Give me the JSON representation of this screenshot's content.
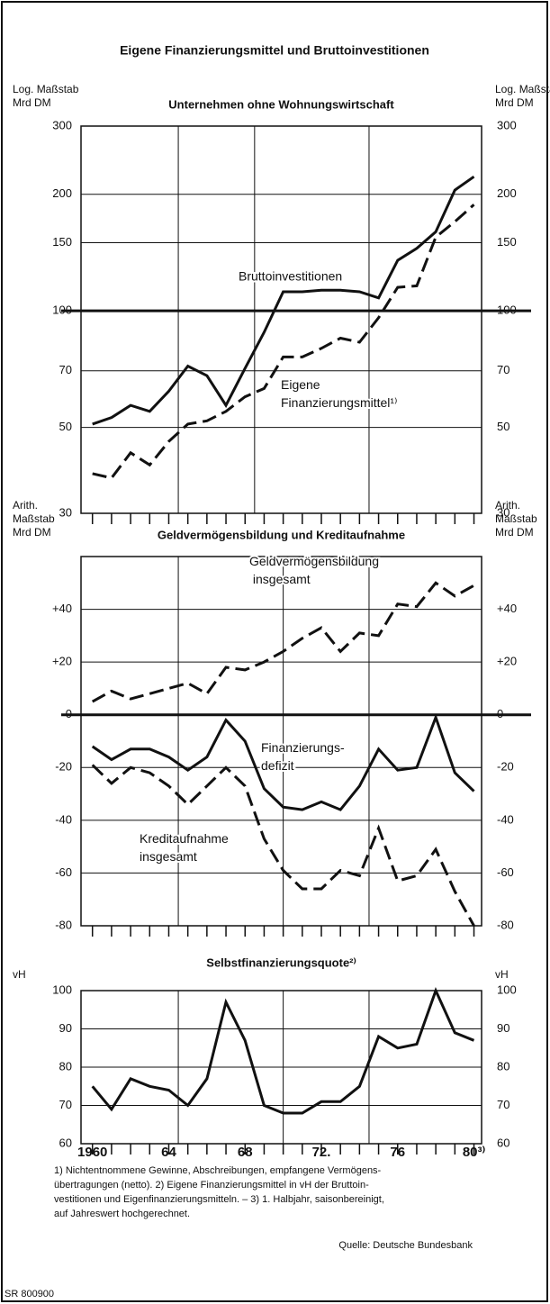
{
  "title": "Eigene Finanzierungsmittel und Bruttoinvestitionen",
  "notes": [
    "1) Nichtentnommene Gewinne, Abschreibungen, empfangene Vermögens-",
    "übertragungen (netto). 2) Eigene Finanzierungsmittel in vH der Bruttoin-",
    "vestitionen und Eigenfinanzierungsmitteln. – 3) 1. Halbjahr, saisonbereinigt,",
    "auf Jahreswert hochgerechnet."
  ],
  "source": "Quelle: Deutsche Bundesbank",
  "code": "SR 800900",
  "chart_data": [
    {
      "type": "line",
      "title": "Unternehmen ohne Wohnungswirtschaft",
      "ylabel": "Log. Maßstab\nMrd  DM",
      "log": true,
      "color": "#111",
      "x": [
        1960,
        1961,
        1962,
        1963,
        1964,
        1965,
        1966,
        1967,
        1968,
        1969,
        1970,
        1971,
        1972,
        1973,
        1974,
        1975,
        1976,
        1977,
        1978,
        1979,
        1980
      ],
      "xlim": [
        1959.4,
        1980.4
      ],
      "ylim": [
        30,
        300
      ],
      "yticks": [
        30,
        50,
        70,
        100,
        150,
        200,
        300
      ],
      "baseline": 100,
      "vgrid": [
        1964.5,
        1968.5,
        1974.5
      ],
      "series": [
        {
          "name": "Bruttoinvestitionen",
          "dash": false,
          "values": [
            51,
            53,
            57,
            55,
            62,
            72,
            68,
            57,
            71,
            88,
            112,
            112,
            113,
            113,
            112,
            108,
            135,
            145,
            160,
            205,
            222
          ]
        },
        {
          "name": "Eigene\nFinanzierungsmittel¹⁾",
          "dash": true,
          "values": [
            38,
            37,
            43,
            40,
            46,
            51,
            52,
            55,
            60,
            63,
            76,
            76,
            80,
            85,
            83,
            96,
            115,
            116,
            155,
            170,
            188
          ]
        }
      ]
    },
    {
      "type": "line",
      "title": "Geldvermögensbildung und Kreditaufnahme",
      "ylabel": "Arith.\nMaßstab\nMrd  DM",
      "log": false,
      "color": "#111",
      "x": [
        1960,
        1961,
        1962,
        1963,
        1964,
        1965,
        1966,
        1967,
        1968,
        1969,
        1970,
        1971,
        1972,
        1973,
        1974,
        1975,
        1976,
        1977,
        1978,
        1979,
        1980
      ],
      "xlim": [
        1959.4,
        1980.4
      ],
      "ylim": [
        -80,
        60
      ],
      "yticks": [
        -80,
        -60,
        -40,
        -20,
        0,
        {
          "value": 20,
          "label": "+20"
        },
        {
          "value": 40,
          "label": "+40"
        }
      ],
      "baseline": 0,
      "vgrid": [
        1964.5,
        1970,
        1974.5
      ],
      "series": [
        {
          "name": "Geldvermögensbildung\n  insgesamt",
          "dash": true,
          "values": [
            5,
            9,
            6,
            8,
            10,
            12,
            8,
            18,
            17,
            20,
            24,
            29,
            33,
            24,
            31,
            30,
            42,
            41,
            50,
            45,
            49
          ]
        },
        {
          "name": "Finanzierungs-\ndefizit",
          "dash": false,
          "values": [
            -12,
            -17,
            -13,
            -13,
            -16,
            -21,
            -16,
            -2,
            -10,
            -28,
            -35,
            -36,
            -33,
            -36,
            -27,
            -13,
            -21,
            -20,
            -1,
            -22,
            -29
          ]
        },
        {
          "name": "Kreditaufnahme\ninsgesamt",
          "dash": true,
          "values": [
            -19,
            -26,
            -20,
            -22,
            -27,
            -34,
            -27,
            -20,
            -27,
            -47,
            -59,
            -66,
            -66,
            -59,
            -61,
            -43,
            -63,
            -61,
            -51,
            -67,
            -80
          ]
        }
      ]
    },
    {
      "type": "line",
      "title": "Selbstfinanzierungsquote²⁾",
      "ylabel": "vH",
      "log": false,
      "color": "#111",
      "x": [
        1960,
        1961,
        1962,
        1963,
        1964,
        1965,
        1966,
        1967,
        1968,
        1969,
        1970,
        1971,
        1972,
        1973,
        1974,
        1975,
        1976,
        1977,
        1978,
        1979,
        1980
      ],
      "xlim": [
        1959.4,
        1980.4
      ],
      "ylim": [
        60,
        100
      ],
      "yticks": [
        60,
        70,
        80,
        90,
        100
      ],
      "vgrid": [
        1964.5,
        1970,
        1974.5
      ],
      "xticks": [
        {
          "value": 1960,
          "label": "1960"
        },
        {
          "value": 1964,
          "label": "64"
        },
        {
          "value": 1968,
          "label": "68"
        },
        {
          "value": 1972,
          "label": "72."
        },
        {
          "value": 1976,
          "label": "76"
        },
        {
          "value": 1980,
          "label": "80³⁾"
        }
      ],
      "series": [
        {
          "name": "Selbstfinanzierungsquote",
          "dash": false,
          "values": [
            75,
            69,
            77,
            75,
            74,
            70,
            77,
            97,
            87,
            70,
            68,
            68,
            71,
            71,
            75,
            88,
            85,
            86,
            100,
            89,
            87
          ]
        }
      ]
    }
  ]
}
